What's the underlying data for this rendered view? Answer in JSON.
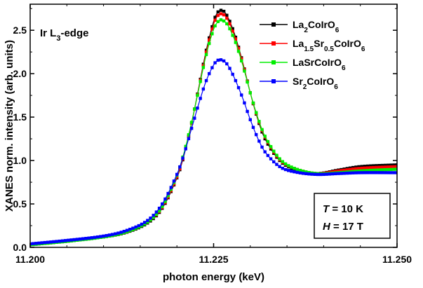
{
  "chart_data": {
    "type": "line",
    "xlabel": "photon energy (keV)",
    "ylabel": "XANES norm. intensity (arb. units)",
    "xlim": [
      11.2,
      11.25
    ],
    "ylim": [
      0.0,
      2.8
    ],
    "xticks": [
      "11.200",
      "11.225",
      "11.250"
    ],
    "xtick_values": [
      11.2,
      11.225,
      11.25
    ],
    "yticks": [
      "0.0",
      "0.5",
      "1.0",
      "1.5",
      "2.0",
      "2.5"
    ],
    "ytick_values": [
      0.0,
      0.5,
      1.0,
      1.5,
      2.0,
      2.5
    ],
    "grid": false,
    "legend_position": "top-right",
    "annotation": {
      "base": "Ir L",
      "sub": "3",
      "tail": "-edge"
    },
    "conditions": [
      {
        "symbol": "T",
        "text": " = 10 K"
      },
      {
        "symbol": "H",
        "text": " = 17 T"
      }
    ],
    "series": [
      {
        "legend": [
          [
            "La",
            false
          ],
          [
            "2",
            true
          ],
          [
            "CoIrO",
            false
          ],
          [
            "6",
            true
          ]
        ],
        "color": "#000000",
        "marker": "square",
        "x": [
          11.2,
          11.205,
          11.21,
          11.213,
          11.216,
          11.218,
          11.22,
          11.221,
          11.222,
          11.223,
          11.224,
          11.225,
          11.2255,
          11.226,
          11.2265,
          11.227,
          11.2275,
          11.228,
          11.229,
          11.23,
          11.231,
          11.232,
          11.234,
          11.236,
          11.239,
          11.242,
          11.245,
          11.25
        ],
        "y": [
          0.03,
          0.07,
          0.12,
          0.17,
          0.28,
          0.45,
          0.8,
          1.07,
          1.43,
          1.85,
          2.27,
          2.6,
          2.7,
          2.73,
          2.71,
          2.64,
          2.54,
          2.42,
          2.12,
          1.78,
          1.48,
          1.25,
          1.0,
          0.9,
          0.85,
          0.89,
          0.93,
          0.95
        ]
      },
      {
        "legend": [
          [
            "La",
            false
          ],
          [
            "1.5",
            true
          ],
          [
            "Sr",
            false
          ],
          [
            "0.5",
            true
          ],
          [
            "CoIrO",
            false
          ],
          [
            "6",
            true
          ]
        ],
        "color": "#ff0000",
        "marker": "square",
        "x": [
          11.2,
          11.205,
          11.21,
          11.213,
          11.216,
          11.218,
          11.22,
          11.221,
          11.222,
          11.223,
          11.224,
          11.225,
          11.2255,
          11.226,
          11.2265,
          11.227,
          11.2275,
          11.228,
          11.229,
          11.23,
          11.231,
          11.232,
          11.234,
          11.236,
          11.239,
          11.242,
          11.245,
          11.25
        ],
        "y": [
          0.035,
          0.075,
          0.125,
          0.175,
          0.29,
          0.46,
          0.81,
          1.08,
          1.43,
          1.84,
          2.25,
          2.57,
          2.66,
          2.69,
          2.67,
          2.61,
          2.51,
          2.4,
          2.11,
          1.78,
          1.49,
          1.27,
          1.01,
          0.91,
          0.85,
          0.88,
          0.91,
          0.93
        ]
      },
      {
        "legend": [
          [
            "LaSrCoIrO",
            false
          ],
          [
            "6",
            true
          ]
        ],
        "color": "#00ee00",
        "marker": "square",
        "x": [
          11.2,
          11.205,
          11.21,
          11.213,
          11.216,
          11.218,
          11.22,
          11.221,
          11.222,
          11.223,
          11.224,
          11.225,
          11.2255,
          11.226,
          11.2265,
          11.227,
          11.2275,
          11.228,
          11.229,
          11.23,
          11.231,
          11.232,
          11.234,
          11.236,
          11.239,
          11.242,
          11.245,
          11.25
        ],
        "y": [
          0.03,
          0.07,
          0.12,
          0.175,
          0.29,
          0.47,
          0.83,
          1.1,
          1.44,
          1.83,
          2.22,
          2.51,
          2.59,
          2.62,
          2.6,
          2.55,
          2.46,
          2.36,
          2.09,
          1.78,
          1.5,
          1.28,
          1.02,
          0.91,
          0.85,
          0.86,
          0.88,
          0.9
        ]
      },
      {
        "legend": [
          [
            "Sr",
            false
          ],
          [
            "2",
            true
          ],
          [
            "CoIrO",
            false
          ],
          [
            "6",
            true
          ]
        ],
        "color": "#0000ff",
        "marker": "square",
        "x": [
          11.2,
          11.205,
          11.21,
          11.213,
          11.216,
          11.218,
          11.22,
          11.221,
          11.222,
          11.223,
          11.224,
          11.225,
          11.2255,
          11.226,
          11.2265,
          11.227,
          11.2275,
          11.228,
          11.229,
          11.23,
          11.231,
          11.232,
          11.234,
          11.236,
          11.239,
          11.242,
          11.245,
          11.25
        ],
        "y": [
          0.04,
          0.08,
          0.13,
          0.19,
          0.31,
          0.5,
          0.84,
          1.08,
          1.37,
          1.66,
          1.92,
          2.1,
          2.15,
          2.16,
          2.14,
          2.09,
          2.01,
          1.92,
          1.71,
          1.47,
          1.26,
          1.1,
          0.93,
          0.87,
          0.84,
          0.85,
          0.86,
          0.86
        ]
      }
    ]
  }
}
